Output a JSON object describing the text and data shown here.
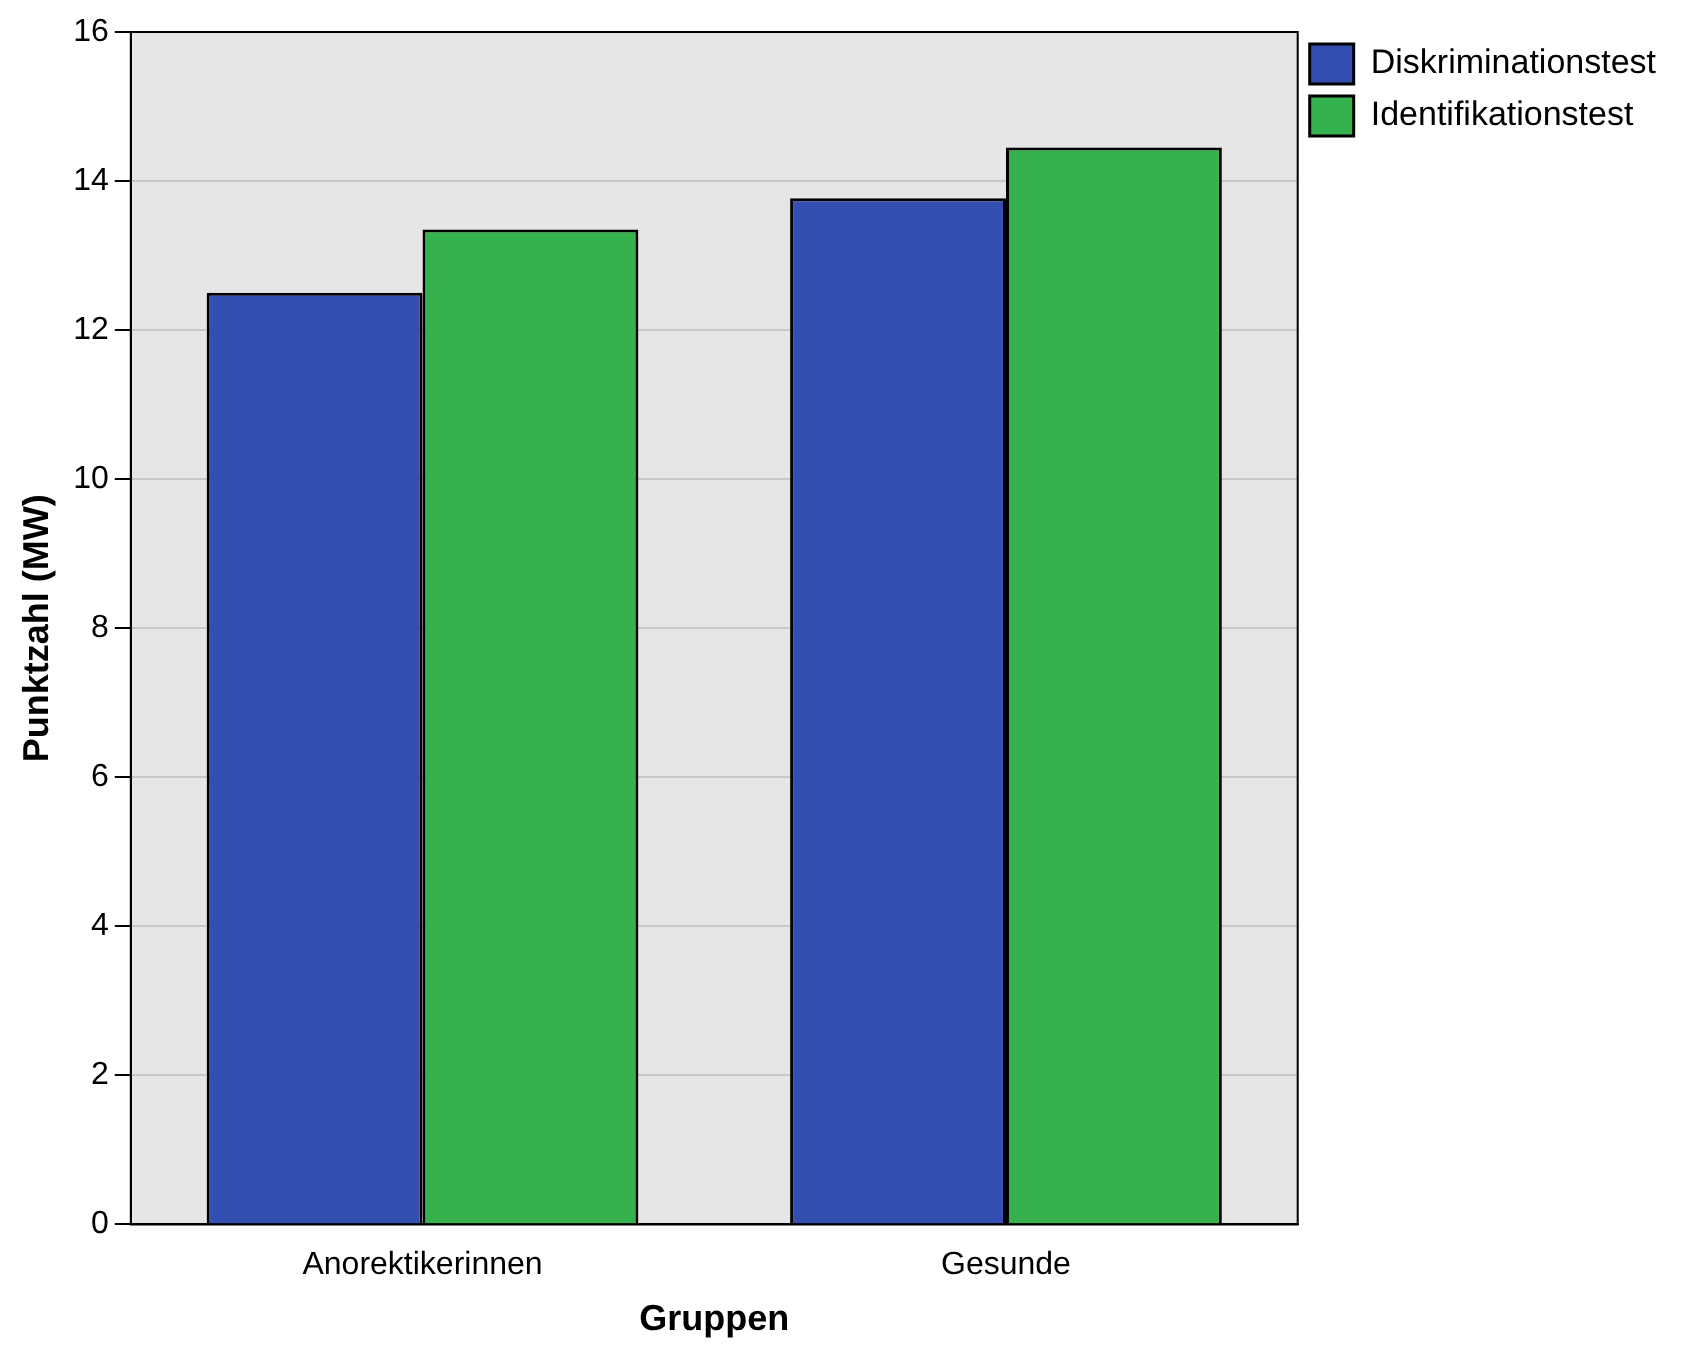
{
  "chart_data": {
    "type": "bar",
    "xlabel": "Gruppen",
    "ylabel": "Punktzahl (MW)",
    "categories": [
      "Anorektikerinnen",
      "Gesunde"
    ],
    "series": [
      {
        "name": "Diskriminationstest",
        "color": "#344fb2",
        "values": [
          12.5,
          13.77
        ]
      },
      {
        "name": "Identifikationstest",
        "color": "#35b14e",
        "values": [
          13.35,
          14.45
        ]
      }
    ],
    "ylim": [
      0,
      16
    ],
    "yticks": [
      0,
      2,
      4,
      6,
      8,
      10,
      12,
      14,
      16
    ],
    "grid": "y",
    "legend": "top right"
  }
}
